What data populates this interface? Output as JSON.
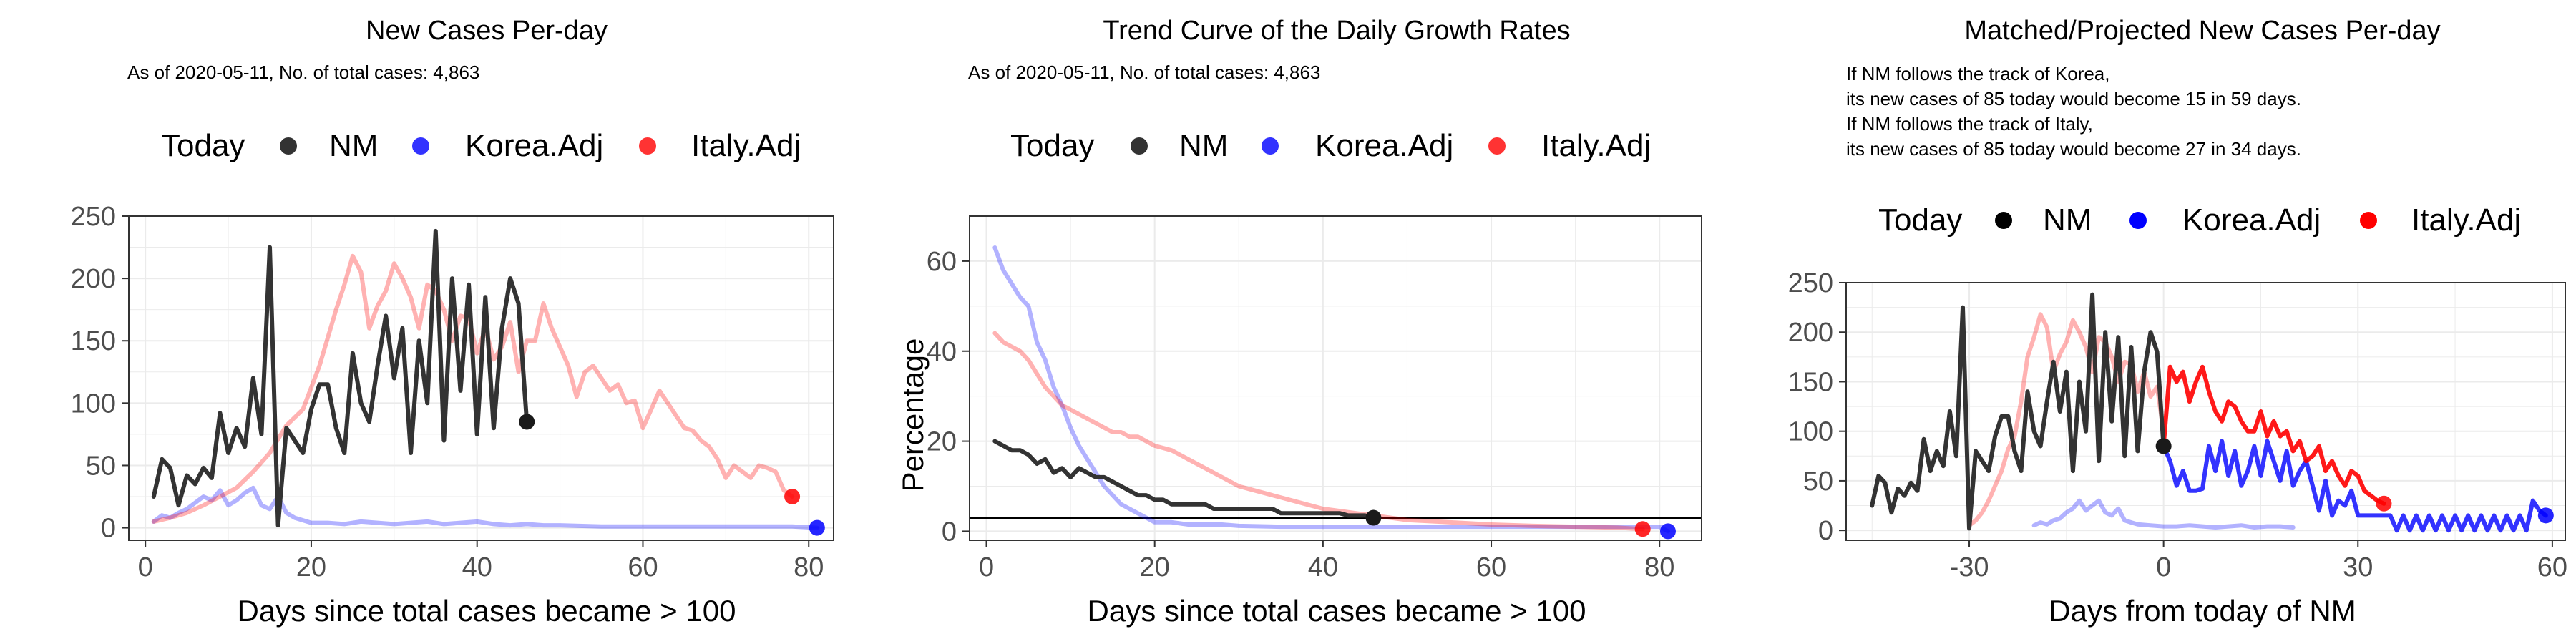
{
  "chart_data": [
    {
      "type": "line",
      "title": "New Cases Per-day",
      "subtitle": "As of 2020-05-11, No. of total cases: 4,863",
      "xlabel": "Days since total cases became > 100",
      "ylabel": "",
      "xlim": [
        -2,
        83
      ],
      "ylim": [
        -10,
        250
      ],
      "xticks": [
        0,
        20,
        40,
        60,
        80
      ],
      "yticks": [
        0,
        50,
        100,
        150,
        200,
        250
      ],
      "grid": true,
      "legend": {
        "title": "Today",
        "position": "top",
        "items": [
          "NM",
          "Korea.Adj",
          "Italy.Adj"
        ]
      },
      "series": [
        {
          "name": "NM",
          "color": "#333333",
          "opacity": 1,
          "end_marker": true,
          "x": [
            1,
            2,
            3,
            4,
            5,
            6,
            7,
            8,
            9,
            10,
            11,
            12,
            13,
            14,
            15,
            16,
            17,
            18,
            19,
            20,
            21,
            22,
            23,
            24,
            25,
            26,
            27,
            28,
            29,
            30,
            31,
            32,
            33,
            34,
            35,
            36,
            37,
            38,
            39,
            40,
            41,
            42,
            43,
            44,
            45,
            46
          ],
          "y": [
            25,
            55,
            48,
            18,
            42,
            35,
            48,
            40,
            92,
            60,
            80,
            65,
            120,
            75,
            225,
            2,
            80,
            70,
            60,
            95,
            115,
            115,
            80,
            60,
            140,
            100,
            85,
            130,
            170,
            120,
            160,
            60,
            150,
            100,
            238,
            70,
            200,
            110,
            195,
            75,
            185,
            80,
            160,
            200,
            180,
            85
          ]
        },
        {
          "name": "Korea.Adj",
          "color": "#0000ff",
          "opacity": 0.3,
          "end_marker": true,
          "x": [
            1,
            2,
            3,
            4,
            5,
            6,
            7,
            8,
            9,
            10,
            11,
            12,
            13,
            14,
            15,
            16,
            17,
            18,
            19,
            20,
            22,
            24,
            26,
            28,
            30,
            32,
            34,
            36,
            38,
            40,
            42,
            44,
            46,
            48,
            50,
            55,
            60,
            65,
            70,
            75,
            78,
            81
          ],
          "y": [
            5,
            10,
            8,
            12,
            15,
            20,
            25,
            22,
            30,
            18,
            22,
            28,
            32,
            18,
            15,
            25,
            12,
            8,
            6,
            4,
            4,
            3,
            5,
            4,
            3,
            4,
            5,
            3,
            4,
            5,
            3,
            2,
            3,
            2,
            2,
            1,
            1,
            1,
            1,
            1,
            1,
            0
          ]
        },
        {
          "name": "Italy.Adj",
          "color": "#ff0000",
          "opacity": 0.3,
          "end_marker": true,
          "x": [
            1,
            3,
            5,
            7,
            9,
            11,
            13,
            15,
            17,
            19,
            21,
            23,
            24,
            25,
            26,
            27,
            28,
            29,
            30,
            31,
            32,
            33,
            34,
            35,
            36,
            37,
            38,
            39,
            40,
            41,
            42,
            43,
            44,
            45,
            46,
            47,
            48,
            49,
            50,
            51,
            52,
            53,
            54,
            55,
            56,
            57,
            58,
            59,
            60,
            61,
            62,
            63,
            64,
            65,
            66,
            67,
            68,
            69,
            70,
            71,
            72,
            73,
            74,
            75,
            76,
            77,
            78
          ],
          "y": [
            5,
            8,
            12,
            18,
            25,
            32,
            45,
            60,
            82,
            95,
            130,
            175,
            195,
            218,
            205,
            160,
            178,
            190,
            212,
            200,
            185,
            160,
            195,
            190,
            175,
            150,
            170,
            168,
            140,
            160,
            135,
            145,
            165,
            125,
            150,
            150,
            180,
            160,
            145,
            130,
            105,
            125,
            130,
            120,
            110,
            115,
            100,
            102,
            80,
            95,
            110,
            100,
            90,
            80,
            78,
            70,
            65,
            55,
            40,
            50,
            45,
            40,
            50,
            48,
            45,
            30,
            25
          ]
        }
      ]
    },
    {
      "type": "line",
      "title": "Trend Curve of the Daily Growth Rates",
      "subtitle": "As of 2020-05-11, No. of total cases: 4,863",
      "xlabel": "Days since total cases became > 100",
      "ylabel": "Percentage",
      "xlim": [
        -2,
        85
      ],
      "ylim": [
        -2,
        70
      ],
      "xticks": [
        0,
        20,
        40,
        60,
        80
      ],
      "yticks": [
        0,
        20,
        40,
        60
      ],
      "grid": true,
      "hline": 3,
      "legend": {
        "title": "Today",
        "position": "top",
        "items": [
          "NM",
          "Korea.Adj",
          "Italy.Adj"
        ]
      },
      "series": [
        {
          "name": "NM",
          "color": "#333333",
          "opacity": 1,
          "end_marker": true,
          "x": [
            1,
            2,
            3,
            4,
            5,
            6,
            7,
            8,
            9,
            10,
            11,
            12,
            13,
            14,
            15,
            16,
            17,
            18,
            19,
            20,
            21,
            22,
            23,
            24,
            25,
            26,
            27,
            28,
            29,
            30,
            31,
            32,
            33,
            34,
            35,
            36,
            37,
            38,
            39,
            40,
            41,
            42,
            43,
            44,
            45,
            46
          ],
          "y": [
            20,
            19,
            18,
            18,
            17,
            15,
            16,
            13,
            14,
            12,
            14,
            13,
            12,
            12,
            11,
            10,
            9,
            8,
            8,
            7,
            7,
            6,
            6,
            6,
            6,
            6,
            5,
            5,
            5,
            5,
            5,
            5,
            5,
            5,
            4,
            4,
            4,
            4,
            4,
            4,
            4,
            4,
            3.5,
            3.5,
            3.5,
            3
          ]
        },
        {
          "name": "Korea.Adj",
          "color": "#0000ff",
          "opacity": 0.3,
          "end_marker": true,
          "x": [
            1,
            2,
            3,
            4,
            5,
            6,
            7,
            8,
            9,
            10,
            11,
            12,
            13,
            14,
            15,
            16,
            17,
            18,
            19,
            20,
            22,
            24,
            26,
            28,
            30,
            35,
            40,
            45,
            50,
            55,
            60,
            65,
            70,
            75,
            80,
            81
          ],
          "y": [
            63,
            58,
            55,
            52,
            50,
            42,
            38,
            32,
            28,
            23,
            19,
            16,
            13,
            10,
            8,
            6,
            5,
            4,
            3,
            2,
            2,
            1.5,
            1.5,
            1.5,
            1.2,
            1,
            1,
            1,
            1,
            1,
            1,
            1,
            1,
            1,
            1,
            0
          ]
        },
        {
          "name": "Italy.Adj",
          "color": "#ff0000",
          "opacity": 0.3,
          "end_marker": true,
          "x": [
            1,
            2,
            3,
            4,
            5,
            6,
            7,
            8,
            9,
            10,
            11,
            12,
            13,
            14,
            15,
            16,
            17,
            18,
            19,
            20,
            22,
            24,
            26,
            28,
            30,
            32,
            34,
            36,
            38,
            40,
            42,
            44,
            46,
            48,
            50,
            55,
            60,
            65,
            70,
            75,
            78
          ],
          "y": [
            44,
            42,
            41,
            40,
            38,
            35,
            32,
            30,
            28,
            27,
            26,
            25,
            24,
            23,
            22,
            22,
            21,
            21,
            20,
            19,
            18,
            16,
            14,
            12,
            10,
            9,
            8,
            7,
            6,
            5,
            4.5,
            4,
            3.5,
            3,
            2.5,
            2,
            1.5,
            1.2,
            1,
            0.8,
            0.5
          ]
        }
      ]
    },
    {
      "type": "line",
      "title": "Matched/Projected New Cases Per-day",
      "annotations": [
        "If NM follows the track of Korea,",
        "its new cases of 85 today would become 15 in 59 days.",
        "If NM follows the track of Italy,",
        "its new cases of 85 today would become 27 in 34 days."
      ],
      "xlabel": "Days from today of NM",
      "ylabel": "",
      "xlim": [
        -49,
        62
      ],
      "ylim": [
        -10,
        250
      ],
      "xticks": [
        -30,
        0,
        30,
        60
      ],
      "yticks": [
        0,
        50,
        100,
        150,
        200,
        250
      ],
      "grid": true,
      "legend": {
        "title": "Today",
        "position": "top",
        "items": [
          "NM",
          "Korea.Adj",
          "Italy.Adj"
        ]
      },
      "series": [
        {
          "name": "NM",
          "color": "#333333",
          "opacity": 1,
          "end_marker": true,
          "x": [
            -45,
            -44,
            -43,
            -42,
            -41,
            -40,
            -39,
            -38,
            -37,
            -36,
            -35,
            -34,
            -33,
            -32,
            -31,
            -30,
            -29,
            -28,
            -27,
            -26,
            -25,
            -24,
            -23,
            -22,
            -21,
            -20,
            -19,
            -18,
            -17,
            -16,
            -15,
            -14,
            -13,
            -12,
            -11,
            -10,
            -9,
            -8,
            -7,
            -6,
            -5,
            -4,
            -3,
            -2,
            -1,
            0
          ],
          "y": [
            25,
            55,
            48,
            18,
            42,
            35,
            48,
            40,
            92,
            60,
            80,
            65,
            120,
            75,
            225,
            2,
            80,
            70,
            60,
            95,
            115,
            115,
            80,
            60,
            140,
            100,
            85,
            130,
            170,
            120,
            160,
            60,
            150,
            100,
            238,
            70,
            200,
            110,
            195,
            75,
            185,
            80,
            160,
            200,
            180,
            85
          ]
        },
        {
          "name": "Korea.Adj (matched)",
          "color": "#0000ff",
          "opacity": 0.3,
          "end_marker": false,
          "x": [
            -20,
            -19,
            -18,
            -17,
            -16,
            -15,
            -14,
            -13,
            -12,
            -11,
            -10,
            -9,
            -8,
            -7,
            -6,
            -5,
            -4,
            -2,
            0,
            2,
            4,
            6,
            8,
            10,
            12,
            14,
            16,
            18,
            20
          ],
          "y": [
            5,
            8,
            6,
            10,
            12,
            18,
            22,
            30,
            20,
            25,
            30,
            18,
            15,
            22,
            10,
            8,
            6,
            5,
            4,
            4,
            5,
            4,
            3,
            4,
            5,
            3,
            4,
            4,
            3
          ]
        },
        {
          "name": "Italy.Adj (matched)",
          "color": "#ff0000",
          "opacity": 0.3,
          "end_marker": false,
          "x": [
            -30,
            -29,
            -28,
            -27,
            -26,
            -25,
            -24,
            -23,
            -22,
            -21,
            -20,
            -19,
            -18,
            -17,
            -16,
            -15,
            -14,
            -13,
            -12,
            -11,
            -10,
            -9,
            -8,
            -7,
            -6,
            -5,
            -4,
            -3,
            -2,
            -1,
            0
          ],
          "y": [
            5,
            10,
            18,
            30,
            45,
            60,
            82,
            95,
            130,
            175,
            195,
            218,
            205,
            160,
            178,
            190,
            212,
            200,
            185,
            160,
            195,
            190,
            175,
            150,
            170,
            168,
            140,
            160,
            135,
            145,
            100
          ]
        },
        {
          "name": "Korea.Adj (projected)",
          "color": "#0000ff",
          "opacity": 0.8,
          "end_marker": true,
          "x": [
            0,
            1,
            2,
            3,
            4,
            5,
            6,
            7,
            8,
            9,
            10,
            11,
            12,
            13,
            14,
            15,
            16,
            17,
            18,
            19,
            20,
            21,
            22,
            23,
            24,
            25,
            26,
            27,
            28,
            29,
            30,
            31,
            32,
            33,
            34,
            35,
            36,
            37,
            38,
            39,
            40,
            41,
            42,
            43,
            44,
            45,
            46,
            47,
            48,
            49,
            50,
            51,
            52,
            53,
            54,
            55,
            56,
            57,
            58,
            59
          ],
          "y": [
            85,
            70,
            45,
            60,
            40,
            40,
            42,
            85,
            60,
            90,
            55,
            80,
            45,
            60,
            85,
            55,
            90,
            70,
            50,
            80,
            45,
            60,
            70,
            45,
            20,
            50,
            15,
            30,
            25,
            40,
            15,
            15,
            15,
            15,
            15,
            15,
            0,
            15,
            0,
            15,
            0,
            15,
            0,
            15,
            0,
            15,
            0,
            15,
            0,
            15,
            0,
            15,
            0,
            15,
            0,
            15,
            0,
            30,
            20,
            15
          ]
        },
        {
          "name": "Italy.Adj (projected)",
          "color": "#ff0000",
          "opacity": 0.9,
          "end_marker": true,
          "x": [
            0,
            1,
            2,
            3,
            4,
            5,
            6,
            7,
            8,
            9,
            10,
            11,
            12,
            13,
            14,
            15,
            16,
            17,
            18,
            19,
            20,
            21,
            22,
            23,
            24,
            25,
            26,
            27,
            28,
            29,
            30,
            31,
            32,
            33,
            34
          ],
          "y": [
            85,
            165,
            150,
            160,
            130,
            150,
            165,
            140,
            120,
            110,
            130,
            125,
            110,
            100,
            100,
            120,
            95,
            110,
            95,
            100,
            80,
            90,
            70,
            75,
            85,
            60,
            70,
            55,
            45,
            60,
            55,
            40,
            35,
            30,
            27
          ]
        }
      ]
    }
  ],
  "legend_dot_colors": {
    "NM": "#333333",
    "Korea.Adj": "#3333ff",
    "Italy.Adj": "#ff3333"
  }
}
